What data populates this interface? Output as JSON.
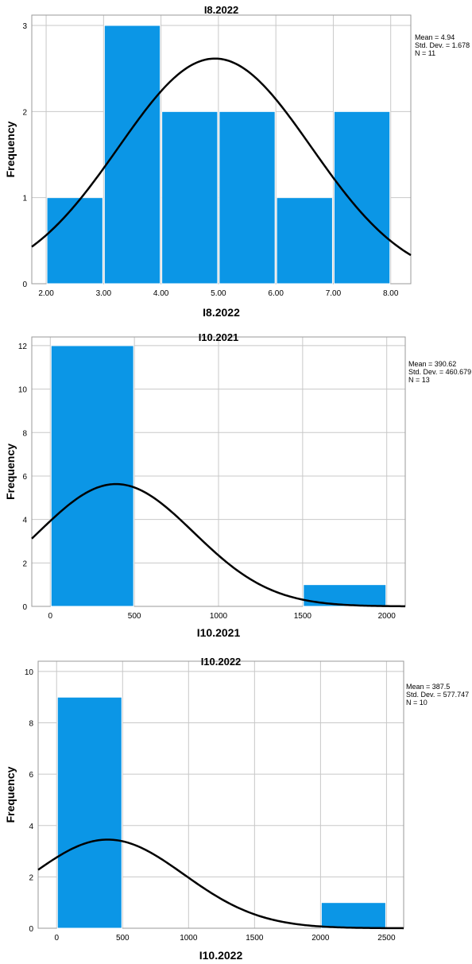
{
  "chart_data": [
    {
      "type": "bar",
      "title": "I8.2022",
      "xlabel": "I8.2022",
      "ylabel": "Frequency",
      "bins": [
        {
          "from": 2.0,
          "to": 3.0,
          "count": 1
        },
        {
          "from": 3.0,
          "to": 4.0,
          "count": 3
        },
        {
          "from": 4.0,
          "to": 5.0,
          "count": 2
        },
        {
          "from": 5.0,
          "to": 6.0,
          "count": 2
        },
        {
          "from": 6.0,
          "to": 7.0,
          "count": 1
        },
        {
          "from": 7.0,
          "to": 8.0,
          "count": 2
        }
      ],
      "xlim": [
        1.75,
        8.35
      ],
      "ylim": [
        0,
        3.12
      ],
      "xticks": [
        2,
        3,
        4,
        5,
        6,
        7,
        8
      ],
      "xtick_labels": [
        "2.00",
        "3.00",
        "4.00",
        "5.00",
        "6.00",
        "7.00",
        "8.00"
      ],
      "yticks": [
        0,
        1,
        2,
        3
      ],
      "ytick_labels": [
        "0",
        "1",
        "2",
        "3"
      ],
      "normal_curve": {
        "mean": 4.94,
        "sd": 1.678,
        "n": 11,
        "bin_width": 1
      },
      "stats": [
        "Mean = 4.94",
        "Std. Dev. = 1.678",
        "N = 11"
      ],
      "grid": true,
      "bar_color": "#0b96e6"
    },
    {
      "type": "bar",
      "title": "I10.2021",
      "xlabel": "I10.2021",
      "ylabel": "Frequency",
      "bins": [
        {
          "from": 0,
          "to": 500,
          "count": 12
        },
        {
          "from": 1500,
          "to": 2000,
          "count": 1
        }
      ],
      "xlim": [
        -110,
        2110
      ],
      "ylim": [
        0,
        12.4
      ],
      "xticks": [
        0,
        500,
        1000,
        1500,
        2000
      ],
      "xtick_labels": [
        "0",
        "500",
        "1000",
        "1500",
        "2000"
      ],
      "yticks": [
        0,
        2,
        4,
        6,
        8,
        10,
        12
      ],
      "ytick_labels": [
        "0",
        "2",
        "4",
        "6",
        "8",
        "10",
        "12"
      ],
      "normal_curve": {
        "mean": 390.62,
        "sd": 460.679,
        "n": 13,
        "bin_width": 500
      },
      "stats": [
        "Mean = 390.62",
        "Std. Dev. = 460.679",
        "N = 13"
      ],
      "grid": true,
      "bar_color": "#0b96e6"
    },
    {
      "type": "bar",
      "title": "I10.2022",
      "xlabel": "I10.2022",
      "ylabel": "Frequency",
      "bins": [
        {
          "from": 0,
          "to": 500,
          "count": 9
        },
        {
          "from": 2000,
          "to": 2500,
          "count": 1
        }
      ],
      "xlim": [
        -140,
        2630
      ],
      "ylim": [
        0,
        10.4
      ],
      "xticks": [
        0,
        500,
        1000,
        1500,
        2000,
        2500
      ],
      "xtick_labels": [
        "0",
        "500",
        "1000",
        "1500",
        "2000",
        "2500"
      ],
      "yticks": [
        0,
        2,
        4,
        6,
        8,
        10
      ],
      "ytick_labels": [
        "0",
        "2",
        "4",
        "6",
        "8",
        "10"
      ],
      "normal_curve": {
        "mean": 387.5,
        "sd": 577.747,
        "n": 10,
        "bin_width": 500
      },
      "stats": [
        "Mean = 387.5",
        "Std. Dev. = 577.747",
        "N = 10"
      ],
      "grid": true,
      "bar_color": "#0b96e6"
    }
  ]
}
